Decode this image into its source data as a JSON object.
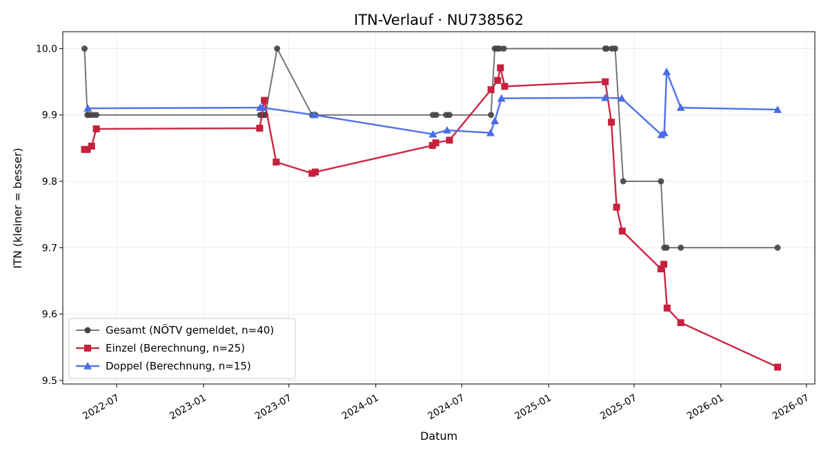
{
  "chart_data": {
    "type": "line",
    "title": "ITN-Verlauf · NU738562",
    "xlabel": "Datum",
    "ylabel": "ITN  (kleiner = besser)",
    "xlim": [
      "2022-03-09",
      "2026-07-19"
    ],
    "ylim": [
      9.4946,
      10.0254
    ],
    "x_ticks": [
      "2022-07-01",
      "2023-01-01",
      "2023-07-01",
      "2024-01-01",
      "2024-07-01",
      "2025-01-01",
      "2025-07-01",
      "2026-01-01",
      "2026-07-01"
    ],
    "x_tick_labels": [
      "2022-07",
      "2023-01",
      "2023-07",
      "2024-01",
      "2024-07",
      "2025-01",
      "2025-07",
      "2026-01",
      "2026-07"
    ],
    "y_ticks": [
      9.5,
      9.6,
      9.7,
      9.8,
      9.9,
      10.0
    ],
    "y_tick_labels": [
      "9.5",
      "9.6",
      "9.7",
      "9.8",
      "9.9",
      "10.0"
    ],
    "grid": true,
    "legend_position": "lower-left",
    "series": [
      {
        "name": "Gesamt (NÖTV gemeldet, n=40)",
        "color": "#444444",
        "marker": "circle",
        "points": [
          {
            "x": "2022-04-24",
            "y": 10.0
          },
          {
            "x": "2022-04-30",
            "y": 9.9
          },
          {
            "x": "2022-05-04",
            "y": 9.9
          },
          {
            "x": "2022-05-11",
            "y": 9.9
          },
          {
            "x": "2022-05-19",
            "y": 9.9
          },
          {
            "x": "2023-05-01",
            "y": 9.9
          },
          {
            "x": "2023-05-04",
            "y": 9.9
          },
          {
            "x": "2023-05-08",
            "y": 9.9
          },
          {
            "x": "2023-05-12",
            "y": 9.9
          },
          {
            "x": "2023-06-06",
            "y": 10.0
          },
          {
            "x": "2023-08-19",
            "y": 9.9
          },
          {
            "x": "2023-08-26",
            "y": 9.9
          },
          {
            "x": "2024-05-01",
            "y": 9.9
          },
          {
            "x": "2024-05-08",
            "y": 9.9
          },
          {
            "x": "2024-05-29",
            "y": 9.9
          },
          {
            "x": "2024-06-05",
            "y": 9.9
          },
          {
            "x": "2024-09-01",
            "y": 9.9
          },
          {
            "x": "2024-09-09",
            "y": 10.0
          },
          {
            "x": "2024-09-14",
            "y": 10.0
          },
          {
            "x": "2024-09-19",
            "y": 10.0
          },
          {
            "x": "2024-09-28",
            "y": 10.0
          },
          {
            "x": "2025-05-01",
            "y": 10.0
          },
          {
            "x": "2025-05-04",
            "y": 10.0
          },
          {
            "x": "2025-05-15",
            "y": 10.0
          },
          {
            "x": "2025-05-22",
            "y": 10.0
          },
          {
            "x": "2025-06-08",
            "y": 9.8
          },
          {
            "x": "2025-08-27",
            "y": 9.8
          },
          {
            "x": "2025-09-03",
            "y": 9.7
          },
          {
            "x": "2025-09-08",
            "y": 9.7
          },
          {
            "x": "2025-10-08",
            "y": 9.7
          },
          {
            "x": "2026-05-01",
            "y": 9.7
          }
        ]
      },
      {
        "name": "Einzel (Berechnung, n=25)",
        "color": "#c8203c",
        "marker": "square",
        "points": [
          {
            "x": "2022-04-24",
            "y": 9.848
          },
          {
            "x": "2022-04-30",
            "y": 9.848
          },
          {
            "x": "2022-05-09",
            "y": 9.853
          },
          {
            "x": "2022-05-19",
            "y": 9.879
          },
          {
            "x": "2023-04-30",
            "y": 9.88
          },
          {
            "x": "2023-05-10",
            "y": 9.922
          },
          {
            "x": "2023-06-04",
            "y": 9.829
          },
          {
            "x": "2023-08-19",
            "y": 9.812
          },
          {
            "x": "2023-08-26",
            "y": 9.814
          },
          {
            "x": "2024-04-30",
            "y": 9.854
          },
          {
            "x": "2024-05-07",
            "y": 9.858
          },
          {
            "x": "2024-06-05",
            "y": 9.862
          },
          {
            "x": "2024-09-01",
            "y": 9.938
          },
          {
            "x": "2024-09-15",
            "y": 9.952
          },
          {
            "x": "2024-09-21",
            "y": 9.971
          },
          {
            "x": "2024-09-30",
            "y": 9.943
          },
          {
            "x": "2025-05-01",
            "y": 9.95
          },
          {
            "x": "2025-05-14",
            "y": 9.889
          },
          {
            "x": "2025-05-25",
            "y": 9.761
          },
          {
            "x": "2025-06-06",
            "y": 9.725
          },
          {
            "x": "2025-08-27",
            "y": 9.668
          },
          {
            "x": "2025-09-02",
            "y": 9.675
          },
          {
            "x": "2025-09-09",
            "y": 9.609
          },
          {
            "x": "2025-10-08",
            "y": 9.587
          },
          {
            "x": "2026-05-01",
            "y": 9.52
          }
        ]
      },
      {
        "name": "Doppel (Berechnung, n=15)",
        "color": "#4a6de5",
        "marker": "triangle",
        "points": [
          {
            "x": "2022-05-01",
            "y": 9.91
          },
          {
            "x": "2023-05-01",
            "y": 9.911
          },
          {
            "x": "2023-05-06",
            "y": 9.911
          },
          {
            "x": "2023-08-24",
            "y": 9.9
          },
          {
            "x": "2024-05-01",
            "y": 9.871
          },
          {
            "x": "2024-05-31",
            "y": 9.877
          },
          {
            "x": "2024-08-31",
            "y": 9.873
          },
          {
            "x": "2024-09-09",
            "y": 9.891
          },
          {
            "x": "2024-09-23",
            "y": 9.925
          },
          {
            "x": "2025-05-01",
            "y": 9.926
          },
          {
            "x": "2025-06-05",
            "y": 9.925
          },
          {
            "x": "2025-08-28",
            "y": 9.87
          },
          {
            "x": "2025-09-03",
            "y": 9.873
          },
          {
            "x": "2025-09-08",
            "y": 9.965
          },
          {
            "x": "2025-10-08",
            "y": 9.911
          },
          {
            "x": "2026-05-01",
            "y": 9.908
          }
        ]
      }
    ]
  }
}
